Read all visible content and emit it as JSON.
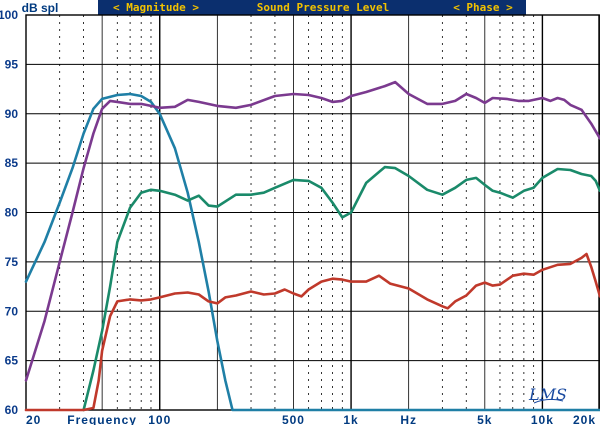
{
  "header": {
    "ylabel": "dB spl",
    "banner": {
      "magnitude": "< Magnitude >",
      "title": "Sound Pressure Level",
      "phase": "< Phase >"
    }
  },
  "logo": "LMS",
  "colors": {
    "background": "#ffffff",
    "banner_bg": "#0b2f6e",
    "banner_text": "#f2c200",
    "axis_text": "#003a80",
    "grid": "#000000"
  },
  "chart_data": {
    "type": "line",
    "xscale": "log",
    "xlim": [
      20,
      20000
    ],
    "ylim": [
      60,
      100
    ],
    "ylabel": "dB spl",
    "ytick_labels": [
      "100",
      "95",
      "90",
      "85",
      "80",
      "75",
      "70",
      "65",
      "60"
    ],
    "xtick_labels": [
      {
        "label": "20",
        "x": 20
      },
      {
        "label": "Frequency",
        "x": 50
      },
      {
        "label": "100",
        "x": 100
      },
      {
        "label": "500",
        "x": 500
      },
      {
        "label": "1k",
        "x": 1000
      },
      {
        "label": "Hz",
        "x": 2000
      },
      {
        "label": "5k",
        "x": 5000
      },
      {
        "label": "10k",
        "x": 10000
      },
      {
        "label": "20k",
        "x": 20000
      }
    ],
    "series": [
      {
        "color": "#1f7fa6",
        "points": [
          [
            20,
            73
          ],
          [
            25,
            77
          ],
          [
            30,
            81
          ],
          [
            35,
            84.5
          ],
          [
            40,
            88
          ],
          [
            45,
            90.5
          ],
          [
            50,
            91.5
          ],
          [
            60,
            91.9
          ],
          [
            70,
            92
          ],
          [
            80,
            91.8
          ],
          [
            90,
            91.2
          ],
          [
            100,
            90
          ],
          [
            120,
            86.5
          ],
          [
            140,
            82
          ],
          [
            160,
            77
          ],
          [
            180,
            72
          ],
          [
            200,
            67
          ],
          [
            220,
            63
          ],
          [
            240,
            60
          ],
          [
            300,
            60
          ],
          [
            1000,
            60
          ],
          [
            5000,
            60
          ],
          [
            20000,
            60
          ]
        ]
      },
      {
        "color": "#7b3a8f",
        "points": [
          [
            20,
            63
          ],
          [
            25,
            69
          ],
          [
            30,
            75
          ],
          [
            35,
            80
          ],
          [
            40,
            84.5
          ],
          [
            45,
            88
          ],
          [
            50,
            90.5
          ],
          [
            55,
            91.3
          ],
          [
            60,
            91.2
          ],
          [
            70,
            91
          ],
          [
            80,
            91
          ],
          [
            90,
            90.8
          ],
          [
            100,
            90.6
          ],
          [
            120,
            90.7
          ],
          [
            140,
            91.4
          ],
          [
            160,
            91.2
          ],
          [
            200,
            90.8
          ],
          [
            250,
            90.6
          ],
          [
            300,
            90.9
          ],
          [
            400,
            91.8
          ],
          [
            500,
            92
          ],
          [
            600,
            91.9
          ],
          [
            700,
            91.6
          ],
          [
            800,
            91.2
          ],
          [
            900,
            91.3
          ],
          [
            1000,
            91.8
          ],
          [
            1200,
            92.2
          ],
          [
            1500,
            92.8
          ],
          [
            1700,
            93.2
          ],
          [
            2000,
            92
          ],
          [
            2500,
            91
          ],
          [
            3000,
            91
          ],
          [
            3500,
            91.3
          ],
          [
            4000,
            92
          ],
          [
            4500,
            91.6
          ],
          [
            5000,
            91.1
          ],
          [
            5500,
            91.6
          ],
          [
            6500,
            91.5
          ],
          [
            7500,
            91.3
          ],
          [
            8500,
            91.3
          ],
          [
            10000,
            91.6
          ],
          [
            11000,
            91.3
          ],
          [
            12000,
            91.6
          ],
          [
            13000,
            91.4
          ],
          [
            14000,
            90.9
          ],
          [
            16000,
            90.4
          ],
          [
            18000,
            89
          ],
          [
            20000,
            87.5
          ]
        ]
      },
      {
        "color": "#1a8a6a",
        "points": [
          [
            40,
            60
          ],
          [
            45,
            64
          ],
          [
            50,
            68
          ],
          [
            55,
            72.5
          ],
          [
            60,
            77
          ],
          [
            70,
            80.5
          ],
          [
            80,
            82
          ],
          [
            90,
            82.3
          ],
          [
            100,
            82.2
          ],
          [
            120,
            81.8
          ],
          [
            140,
            81.2
          ],
          [
            160,
            81.7
          ],
          [
            180,
            80.7
          ],
          [
            200,
            80.6
          ],
          [
            250,
            81.8
          ],
          [
            300,
            81.8
          ],
          [
            350,
            82
          ],
          [
            400,
            82.5
          ],
          [
            500,
            83.3
          ],
          [
            600,
            83.2
          ],
          [
            700,
            82.5
          ],
          [
            800,
            81
          ],
          [
            900,
            79.5
          ],
          [
            1000,
            80
          ],
          [
            1200,
            83
          ],
          [
            1500,
            84.6
          ],
          [
            1700,
            84.5
          ],
          [
            2000,
            83.7
          ],
          [
            2500,
            82.3
          ],
          [
            3000,
            81.8
          ],
          [
            3500,
            82.5
          ],
          [
            4000,
            83.3
          ],
          [
            4500,
            83.5
          ],
          [
            5000,
            82.8
          ],
          [
            5500,
            82.2
          ],
          [
            6000,
            82
          ],
          [
            7000,
            81.5
          ],
          [
            8000,
            82.2
          ],
          [
            9000,
            82.5
          ],
          [
            10000,
            83.5
          ],
          [
            12000,
            84.4
          ],
          [
            14000,
            84.3
          ],
          [
            16000,
            83.9
          ],
          [
            18000,
            83.7
          ],
          [
            19000,
            83.2
          ],
          [
            20000,
            82.2
          ]
        ]
      },
      {
        "color": "#c0392b",
        "points": [
          [
            20,
            60
          ],
          [
            40,
            60
          ],
          [
            45,
            60.2
          ],
          [
            48,
            63
          ],
          [
            50,
            66
          ],
          [
            55,
            69.5
          ],
          [
            60,
            71
          ],
          [
            70,
            71.2
          ],
          [
            80,
            71.1
          ],
          [
            90,
            71.2
          ],
          [
            100,
            71.4
          ],
          [
            120,
            71.8
          ],
          [
            140,
            71.9
          ],
          [
            160,
            71.7
          ],
          [
            180,
            71
          ],
          [
            200,
            70.8
          ],
          [
            220,
            71.4
          ],
          [
            250,
            71.6
          ],
          [
            300,
            72
          ],
          [
            350,
            71.7
          ],
          [
            400,
            71.8
          ],
          [
            450,
            72.2
          ],
          [
            500,
            71.8
          ],
          [
            550,
            71.5
          ],
          [
            600,
            72.2
          ],
          [
            700,
            73
          ],
          [
            800,
            73.3
          ],
          [
            900,
            73.2
          ],
          [
            1000,
            73
          ],
          [
            1200,
            73
          ],
          [
            1400,
            73.6
          ],
          [
            1600,
            72.8
          ],
          [
            2000,
            72.3
          ],
          [
            2500,
            71.2
          ],
          [
            3000,
            70.5
          ],
          [
            3200,
            70.3
          ],
          [
            3500,
            71
          ],
          [
            4000,
            71.6
          ],
          [
            4500,
            72.6
          ],
          [
            5000,
            72.9
          ],
          [
            5500,
            72.6
          ],
          [
            6000,
            72.7
          ],
          [
            7000,
            73.6
          ],
          [
            8000,
            73.8
          ],
          [
            9000,
            73.7
          ],
          [
            10000,
            74.2
          ],
          [
            12000,
            74.7
          ],
          [
            14000,
            74.8
          ],
          [
            16000,
            75.4
          ],
          [
            17000,
            75.8
          ],
          [
            18000,
            74.5
          ],
          [
            19000,
            73
          ],
          [
            20000,
            71.5
          ]
        ]
      }
    ]
  }
}
